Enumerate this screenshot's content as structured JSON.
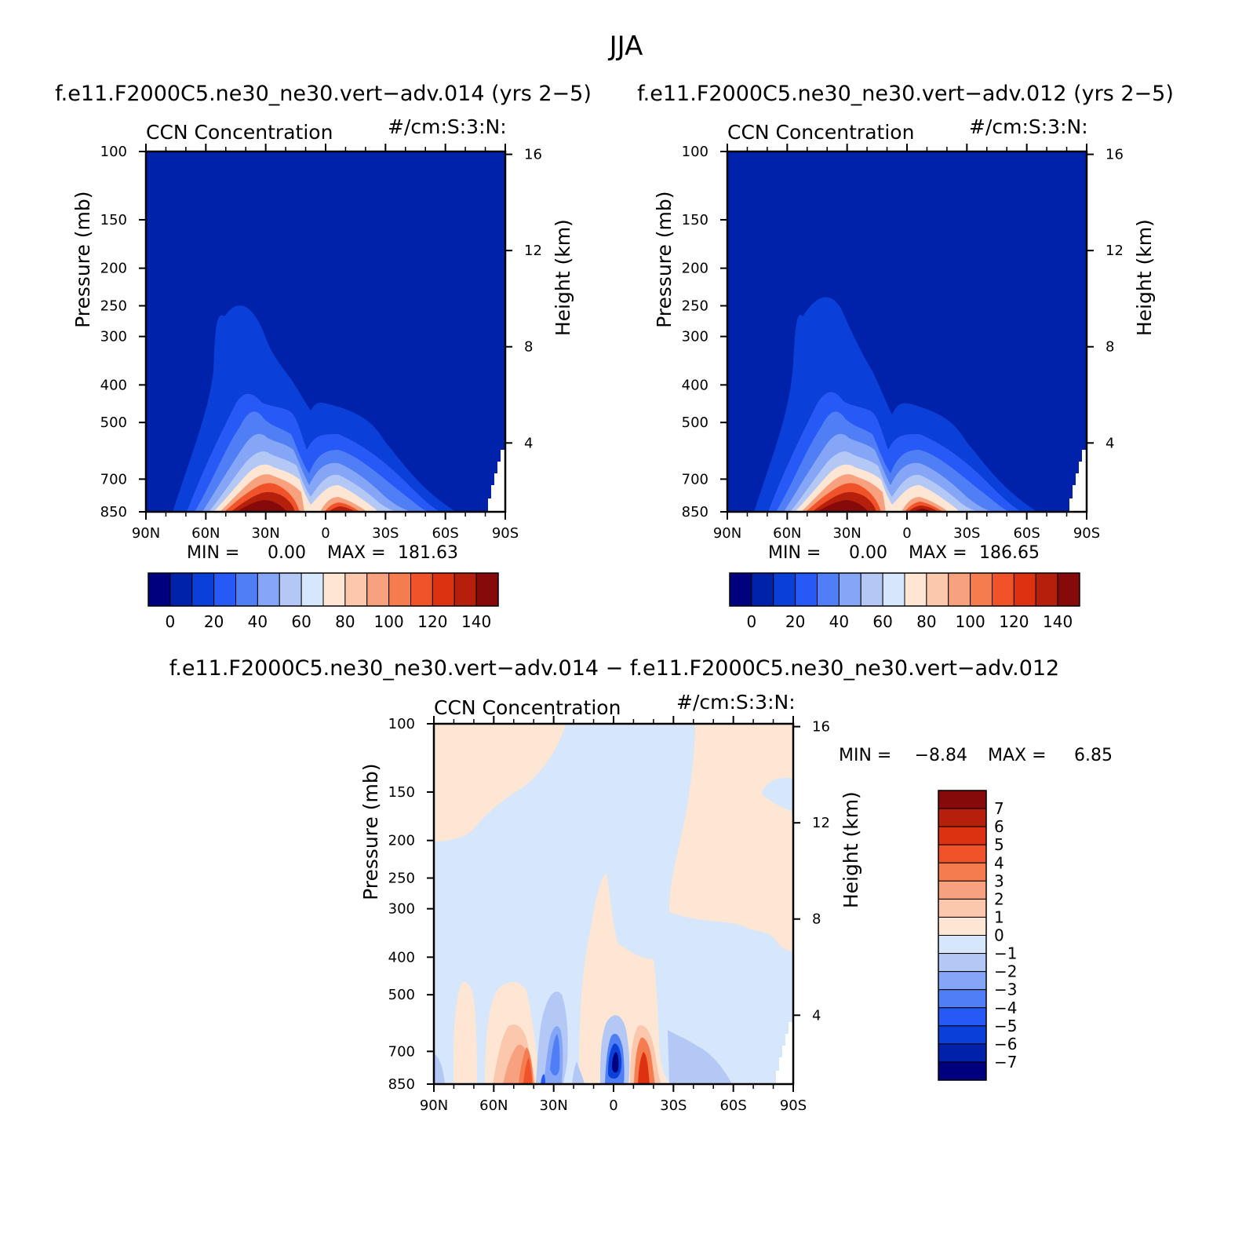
{
  "season": "JJA",
  "panels": [
    {
      "case_title": "f.e11.F2000C5.ne30_ne30.vert−adv.014 (yrs 2−5)",
      "variable": "CCN Concentration",
      "units": "#/cm:S:3:N:",
      "min_label": "MIN =",
      "min_value": "0.00",
      "max_label": "MAX =",
      "max_value": "181.63"
    },
    {
      "case_title": "f.e11.F2000C5.ne30_ne30.vert−adv.012 (yrs 2−5)",
      "variable": "CCN Concentration",
      "units": "#/cm:S:3:N:",
      "min_label": "MIN =",
      "min_value": "0.00",
      "max_label": "MAX =",
      "max_value": "186.65"
    },
    {
      "case_title": "f.e11.F2000C5.ne30_ne30.vert−adv.014 − f.e11.F2000C5.ne30_ne30.vert−adv.012",
      "variable": "CCN Concentration",
      "units": "#/cm:S:3:N:",
      "min_label": "MIN =",
      "min_value": "−8.84",
      "max_label": "MAX =",
      "max_value": "6.85"
    }
  ],
  "axes": {
    "ylabel": "Pressure (mb)",
    "ylabel_right": "Height (km)",
    "pressure_ticks": [
      "100",
      "150",
      "200",
      "250",
      "300",
      "400",
      "500",
      "700",
      "850"
    ],
    "height_ticks": [
      "16",
      "12",
      "8",
      "4"
    ],
    "lat_ticks": [
      "90N",
      "60N",
      "30N",
      "0",
      "30S",
      "60S",
      "90S"
    ]
  },
  "colorbar_abs": {
    "labels": [
      "0",
      "20",
      "40",
      "60",
      "80",
      "100",
      "120",
      "140"
    ],
    "colors": [
      "#00007f",
      "#0022aa",
      "#0a3fd8",
      "#2659f5",
      "#4f7ef5",
      "#85a6f6",
      "#b4c8f6",
      "#d6e6fb",
      "#fde6d4",
      "#fbc8ae",
      "#f8a17e",
      "#f47c4e",
      "#f0532a",
      "#dc3212",
      "#b5200d",
      "#860a0a"
    ]
  },
  "colorbar_diff": {
    "labels": [
      "7",
      "6",
      "5",
      "4",
      "3",
      "2",
      "1",
      "0",
      "−1",
      "−2",
      "−3",
      "−4",
      "−5",
      "−6",
      "−7"
    ],
    "colors": [
      "#860a0a",
      "#b5200d",
      "#dc3212",
      "#f0532a",
      "#f47c4e",
      "#f8a17e",
      "#fbc8ae",
      "#fde6d4",
      "#d6e6fb",
      "#b4c8f6",
      "#85a6f6",
      "#4f7ef5",
      "#2659f5",
      "#0a3fd8",
      "#0022aa",
      "#00007f"
    ]
  },
  "chart_data": [
    {
      "type": "heatmap",
      "title": "CCN Concentration",
      "subtitle": "f.e11.F2000C5.ne30_ne30.vert−adv.014 (yrs 2−5)",
      "x_ticks": [
        "90N",
        "60N",
        "30N",
        "0",
        "30S",
        "60S",
        "90S"
      ],
      "xlim": [
        90,
        -90
      ],
      "ylabel": "Pressure (mb)",
      "ylim": [
        100,
        850
      ],
      "log_y": true,
      "contour_levels": [
        0,
        10,
        20,
        30,
        40,
        50,
        60,
        70,
        80,
        90,
        100,
        110,
        120,
        130,
        140
      ],
      "min": 0.0,
      "max": 181.63,
      "peaks": [
        {
          "lat": 40,
          "pressure_mb": 850,
          "value": 181.63
        },
        {
          "lat": -8,
          "pressure_mb": 850,
          "value": 150
        }
      ]
    },
    {
      "type": "heatmap",
      "title": "CCN Concentration",
      "subtitle": "f.e11.F2000C5.ne30_ne30.vert−adv.012 (yrs 2−5)",
      "x_ticks": [
        "90N",
        "60N",
        "30N",
        "0",
        "30S",
        "60S",
        "90S"
      ],
      "xlim": [
        90,
        -90
      ],
      "ylabel": "Pressure (mb)",
      "ylim": [
        100,
        850
      ],
      "log_y": true,
      "contour_levels": [
        0,
        10,
        20,
        30,
        40,
        50,
        60,
        70,
        80,
        90,
        100,
        110,
        120,
        130,
        140
      ],
      "min": 0.0,
      "max": 186.65,
      "peaks": [
        {
          "lat": 40,
          "pressure_mb": 850,
          "value": 186.65
        },
        {
          "lat": -8,
          "pressure_mb": 850,
          "value": 150
        }
      ]
    },
    {
      "type": "heatmap",
      "title": "CCN Concentration",
      "subtitle": "f.e11.F2000C5.ne30_ne30.vert−adv.014 − f.e11.F2000C5.ne30_ne30.vert−adv.012",
      "x_ticks": [
        "90N",
        "60N",
        "30N",
        "0",
        "30S",
        "60S",
        "90S"
      ],
      "xlim": [
        90,
        -90
      ],
      "ylabel": "Pressure (mb)",
      "ylim": [
        100,
        850
      ],
      "log_y": true,
      "contour_levels": [
        -7,
        -6,
        -5,
        -4,
        -3,
        -2,
        -1,
        0,
        1,
        2,
        3,
        4,
        5,
        6,
        7
      ],
      "min": -8.84,
      "max": 6.85,
      "extrema": [
        {
          "lat": 0,
          "pressure_mb": 780,
          "value": -8.84
        },
        {
          "lat": -12,
          "pressure_mb": 820,
          "value": 6.85
        },
        {
          "lat": 40,
          "pressure_mb": 820,
          "value": 5
        },
        {
          "lat": 30,
          "pressure_mb": 740,
          "value": -5
        }
      ]
    }
  ]
}
